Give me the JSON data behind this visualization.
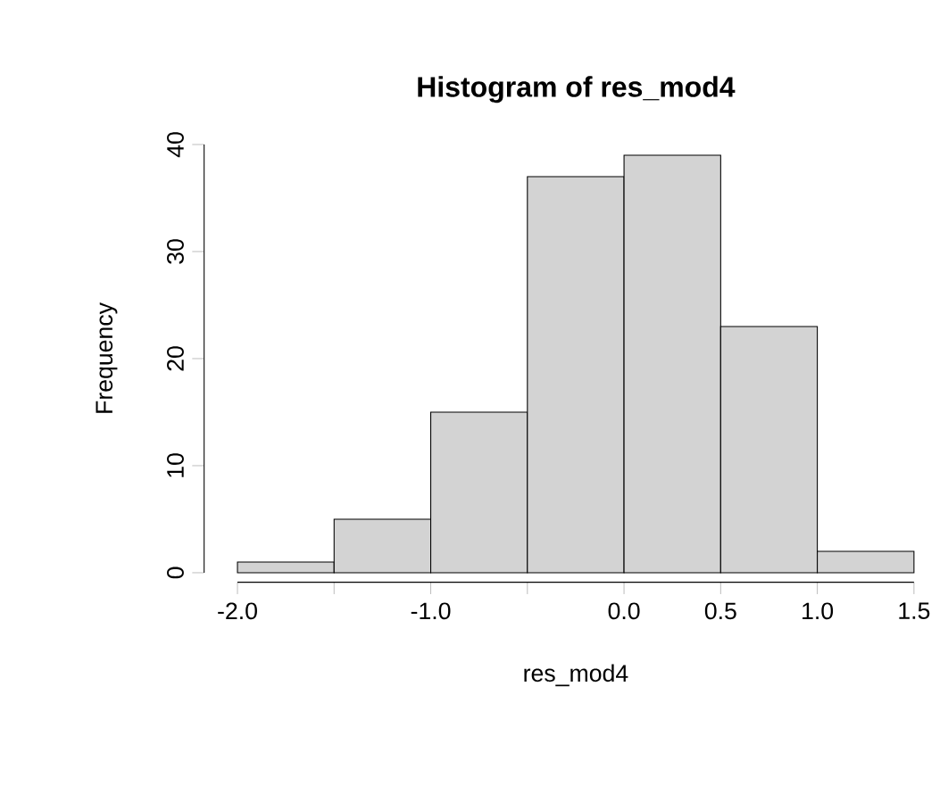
{
  "chart_data": {
    "type": "histogram",
    "title": "Histogram of res_mod4",
    "xlabel": "res_mod4",
    "ylabel": "Frequency",
    "bins": [
      -2.0,
      -1.5,
      -1.0,
      -0.5,
      0.0,
      0.5,
      1.0,
      1.5
    ],
    "values": [
      1,
      5,
      15,
      37,
      39,
      23,
      2
    ],
    "color": "#d3d3d3",
    "xlim": [
      -2.0,
      1.5
    ],
    "xticks": [
      {
        "value": -2.0,
        "label": "-2.0"
      },
      {
        "value": -1.5,
        "label": null
      },
      {
        "value": -1.0,
        "label": "-1.0"
      },
      {
        "value": -0.5,
        "label": null
      },
      {
        "value": 0.0,
        "label": "0.0"
      },
      {
        "value": 0.5,
        "label": "0.5"
      },
      {
        "value": 1.0,
        "label": "1.0"
      },
      {
        "value": 1.5,
        "label": "1.5"
      }
    ],
    "ylim": [
      0,
      40
    ],
    "yticks": [
      0,
      10,
      20,
      30,
      40
    ],
    "grid": false
  }
}
